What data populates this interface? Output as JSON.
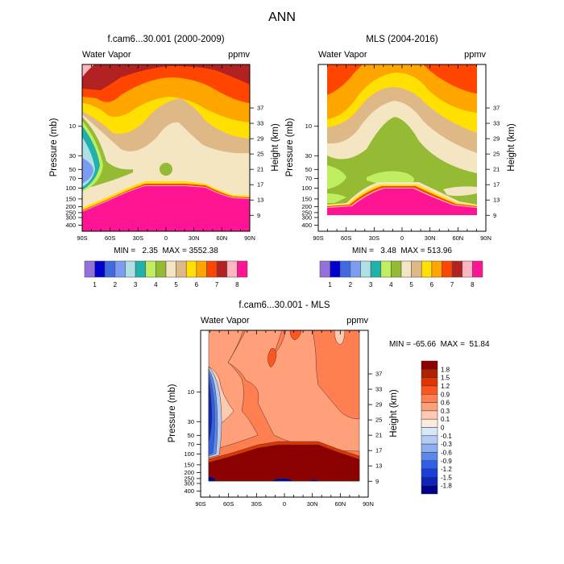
{
  "figure": {
    "title": "ANN"
  },
  "chart_data": [
    {
      "type": "heatmap",
      "subtype": "filled-contour",
      "title": "f.cam6...30.001 (2000-2009)",
      "left_label": "Water Vapor",
      "right_label": "ppmv",
      "xlabel": "",
      "ylabel": "Pressure (mb)",
      "ylabel_right": "Height (km)",
      "x_ticks": [
        "90S",
        "60S",
        "30S",
        "0",
        "30N",
        "60N",
        "90N"
      ],
      "y_ticks": [
        "10",
        "30",
        "50",
        "70",
        "100",
        "150",
        "200",
        "250",
        "300",
        "400"
      ],
      "y_ticks_right": [
        "37",
        "33",
        "29",
        "25",
        "21",
        "17",
        "13",
        "9"
      ],
      "stats": "MIN =   2.35  MAX = 3552.38",
      "min": 2.35,
      "max": 3552.38,
      "units": "ppmv",
      "colorbar": {
        "orientation": "horizontal",
        "labels": [
          "1",
          "2",
          "3",
          "4",
          "5",
          "6",
          "7",
          "8"
        ],
        "colors": [
          "#9370DB",
          "#0000CD",
          "#4169E1",
          "#7B9CF0",
          "#B0E0E6",
          "#20B2AA",
          "#BFEF61",
          "#94BB33",
          "#F5E6C3",
          "#DEB887",
          "#FFE000",
          "#FFA500",
          "#FF4500",
          "#B22222",
          "#FFB6C1",
          "#FF1493"
        ]
      },
      "description": "Stratospheric water vapor; moist lower-stratosphere (>8 ppmv, pink) below ~100-150 mb following tropopause; dry south-polar vortex (~2-3 ppmv) at 30-100 mb near 90S; values increase upward to ~7-8 ppmv near top."
    },
    {
      "type": "heatmap",
      "subtype": "filled-contour",
      "title": "MLS (2004-2016)",
      "left_label": "Water Vapor",
      "right_label": "ppmv",
      "xlabel": "",
      "ylabel": "Pressure (mb)",
      "ylabel_right": "Height (km)",
      "x_ticks": [
        "90S",
        "60S",
        "30S",
        "0",
        "30N",
        "60N",
        "90N"
      ],
      "y_ticks": [
        "10",
        "30",
        "50",
        "70",
        "100",
        "150",
        "200",
        "250",
        "300",
        "400"
      ],
      "y_ticks_right": [
        "37",
        "33",
        "29",
        "25",
        "21",
        "17",
        "13",
        "9"
      ],
      "stats": "MIN =   3.48  MAX = 513.96",
      "min": 3.48,
      "max": 513.96,
      "units": "ppmv",
      "colorbar": {
        "orientation": "horizontal",
        "labels": [
          "1",
          "2",
          "3",
          "4",
          "5",
          "6",
          "7",
          "8"
        ],
        "colors": [
          "#9370DB",
          "#0000CD",
          "#4169E1",
          "#7B9CF0",
          "#B0E0E6",
          "#20B2AA",
          "#BFEF61",
          "#94BB33",
          "#F5E6C3",
          "#DEB887",
          "#FFE000",
          "#FFA500",
          "#FF4500",
          "#B22222",
          "#FFB6C1",
          "#FF1493"
        ]
      },
      "description": "Observed water vapor 82S-82N, 1-300 mb; ~4 ppmv (green) in tropical lower stratosphere with tape-recorder tongue, increasing to ~7 ppmv near top."
    },
    {
      "type": "heatmap",
      "subtype": "filled-contour",
      "title": "f.cam6...30.001 - MLS",
      "left_label": "Water Vapor",
      "right_label": "ppmv",
      "xlabel": "",
      "ylabel": "Pressure (mb)",
      "ylabel_right": "Height (km)",
      "x_ticks": [
        "90S",
        "60S",
        "30S",
        "0",
        "30N",
        "60N",
        "90N"
      ],
      "y_ticks": [
        "10",
        "30",
        "50",
        "70",
        "100",
        "150",
        "200",
        "250",
        "300",
        "400"
      ],
      "y_ticks_right": [
        "37",
        "33",
        "29",
        "25",
        "21",
        "17",
        "13",
        "9"
      ],
      "stats": "MIN = -65.66  MAX =  51.84",
      "min": -65.66,
      "max": 51.84,
      "units": "ppmv",
      "colorbar": {
        "orientation": "vertical",
        "labels": [
          "1.8",
          "1.5",
          "1.2",
          "0.9",
          "0.6",
          "0.3",
          "0.1",
          "0",
          "-0.1",
          "-0.3",
          "-0.6",
          "-0.9",
          "-1.2",
          "-1.5",
          "-1.8"
        ],
        "colors": [
          "#8B0000",
          "#B22000",
          "#E03500",
          "#FF5520",
          "#FF7F50",
          "#FFA07A",
          "#FFCBB0",
          "#FFEBDD",
          "#D6E8FA",
          "#B4CCF5",
          "#8EAEF0",
          "#5A88EC",
          "#2F5FE8",
          "#1A3FD8",
          "#0D24B8",
          "#00008B"
        ]
      },
      "description": "Model minus observations: model moister (+0.6 to +1.2 ppmv) through most of the tropical and mid-latitude stratosphere; strongly drier (< -1.8 ppmv) in the Antarctic polar vortex; large positive bias below the tropopause."
    }
  ]
}
